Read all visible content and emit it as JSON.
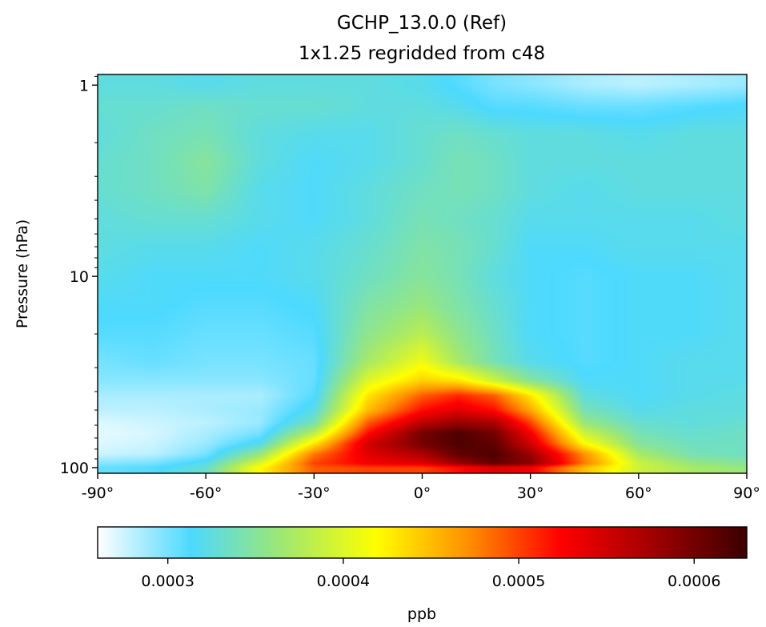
{
  "chart_data": {
    "type": "heatmap",
    "title": "GCHP_13.0.0 (Ref)",
    "subtitle": "1x1.25 regridded from c48",
    "xlabel": "",
    "ylabel": "Pressure (hPa)",
    "xlim": [
      -90,
      90
    ],
    "ylim": [
      107,
      0.88
    ],
    "yscale": "log",
    "x_ticks": [
      -90,
      -60,
      -30,
      0,
      30,
      60,
      90
    ],
    "x_tick_labels": [
      "-90°",
      "-60°",
      "-30°",
      "0°",
      "30°",
      "60°",
      "90°"
    ],
    "y_ticks": [
      1,
      10,
      100
    ],
    "y_tick_labels": [
      "1",
      "10",
      "100"
    ],
    "colorbar": {
      "orientation": "horizontal",
      "label": "ppb",
      "min": 0.00026,
      "max": 0.00063,
      "ticks": [
        0.0003,
        0.0004,
        0.0005,
        0.0006
      ],
      "tick_labels": [
        "0.0003",
        "0.0004",
        "0.0005",
        "0.0006"
      ],
      "colormap": [
        "#ffffff",
        "#4dd9ff",
        "#a0e870",
        "#ffff00",
        "#ff9000",
        "#ff0000",
        "#a00000",
        "#3c0000"
      ]
    },
    "grid": false,
    "latitudes": [
      -90,
      -75,
      -60,
      -45,
      -30,
      -15,
      0,
      10,
      20,
      30,
      45,
      60,
      75,
      90
    ],
    "pressures": [
      1,
      1.3,
      1.8,
      2.5,
      3.5,
      5,
      7,
      10,
      14,
      20,
      28,
      35,
      42,
      50,
      58,
      66,
      75,
      85,
      95,
      100
    ],
    "values": [
      [
        0.000325,
        0.000325,
        0.00032,
        0.000325,
        0.000325,
        0.000325,
        0.00032,
        0.00031,
        0.0003,
        0.000295,
        0.000285,
        0.00028,
        0.000285,
        0.00029
      ],
      [
        0.00033,
        0.00033,
        0.000335,
        0.00033,
        0.00033,
        0.000325,
        0.000325,
        0.00032,
        0.00031,
        0.00031,
        0.000305,
        0.000305,
        0.00031,
        0.000315
      ],
      [
        0.000325,
        0.000335,
        0.00034,
        0.000325,
        0.00032,
        0.00032,
        0.00033,
        0.000335,
        0.00033,
        0.000325,
        0.000325,
        0.00032,
        0.000325,
        0.000325
      ],
      [
        0.00033,
        0.000335,
        0.00035,
        0.000325,
        0.000315,
        0.00032,
        0.00033,
        0.00034,
        0.000335,
        0.000325,
        0.000325,
        0.000325,
        0.000325,
        0.000325
      ],
      [
        0.00033,
        0.000335,
        0.000345,
        0.00032,
        0.000315,
        0.000325,
        0.000335,
        0.00034,
        0.000335,
        0.000325,
        0.00032,
        0.000325,
        0.000325,
        0.000325
      ],
      [
        0.000325,
        0.00033,
        0.00033,
        0.00032,
        0.000315,
        0.000325,
        0.00034,
        0.000335,
        0.00033,
        0.00032,
        0.00032,
        0.00032,
        0.00032,
        0.000325
      ],
      [
        0.000325,
        0.00032,
        0.00032,
        0.000315,
        0.00032,
        0.00033,
        0.000345,
        0.00034,
        0.00033,
        0.000315,
        0.000315,
        0.00032,
        0.00032,
        0.00032
      ],
      [
        0.00032,
        0.000315,
        0.000315,
        0.000315,
        0.00032,
        0.000335,
        0.00035,
        0.00034,
        0.000325,
        0.000315,
        0.00031,
        0.000315,
        0.000315,
        0.00032
      ],
      [
        0.000315,
        0.000315,
        0.00031,
        0.00031,
        0.000315,
        0.000345,
        0.00036,
        0.000345,
        0.00033,
        0.000315,
        0.00031,
        0.000315,
        0.000315,
        0.00032
      ],
      [
        0.00031,
        0.00031,
        0.000305,
        0.000305,
        0.00031,
        0.000355,
        0.00038,
        0.000355,
        0.000335,
        0.000315,
        0.00031,
        0.000315,
        0.000315,
        0.00032
      ],
      [
        0.0003,
        0.000305,
        0.0003,
        0.0003,
        0.000305,
        0.00037,
        0.00041,
        0.00037,
        0.00034,
        0.00032,
        0.00031,
        0.000315,
        0.00032,
        0.00032
      ],
      [
        0.000295,
        0.000295,
        0.000295,
        0.000295,
        0.000305,
        0.0004,
        0.00044,
        0.00043,
        0.00039,
        0.00035,
        0.000315,
        0.000315,
        0.00032,
        0.00032
      ],
      [
        0.000285,
        0.000285,
        0.000285,
        0.000285,
        0.00031,
        0.00043,
        0.00049,
        0.00051,
        0.00049,
        0.00043,
        0.000325,
        0.000315,
        0.00032,
        0.000325
      ],
      [
        0.00028,
        0.00028,
        0.000285,
        0.00029,
        0.00032,
        0.00045,
        0.00052,
        0.00054,
        0.00052,
        0.00046,
        0.00034,
        0.00032,
        0.000325,
        0.000325
      ],
      [
        0.00027,
        0.000275,
        0.00028,
        0.00029,
        0.00034,
        0.00049,
        0.00056,
        0.00058,
        0.00057,
        0.0005,
        0.00036,
        0.00033,
        0.000325,
        0.00033
      ],
      [
        0.000268,
        0.000272,
        0.000285,
        0.0003,
        0.00038,
        0.00052,
        0.0006,
        0.00062,
        0.0006,
        0.00053,
        0.00039,
        0.00034,
        0.00033,
        0.000335
      ],
      [
        0.00027,
        0.000275,
        0.00029,
        0.00032,
        0.00043,
        0.00055,
        0.0006,
        0.00062,
        0.00061,
        0.00055,
        0.00042,
        0.00035,
        0.000335,
        0.000335
      ],
      [
        0.000275,
        0.00028,
        0.0003,
        0.00036,
        0.00048,
        0.00054,
        0.00057,
        0.00061,
        0.00062,
        0.00058,
        0.00047,
        0.00037,
        0.00034,
        0.000335
      ],
      [
        0.000295,
        0.0003,
        0.00032,
        0.0004,
        0.0005,
        0.00053,
        0.00054,
        0.00058,
        0.00061,
        0.00059,
        0.00048,
        0.00039,
        0.00036,
        0.00035
      ],
      [
        0.000305,
        0.00031,
        0.00033,
        0.00042,
        0.00049,
        0.0005,
        0.0005,
        0.00052,
        0.00054,
        0.00053,
        0.00045,
        0.00039,
        0.00037,
        0.00036
      ]
    ]
  }
}
